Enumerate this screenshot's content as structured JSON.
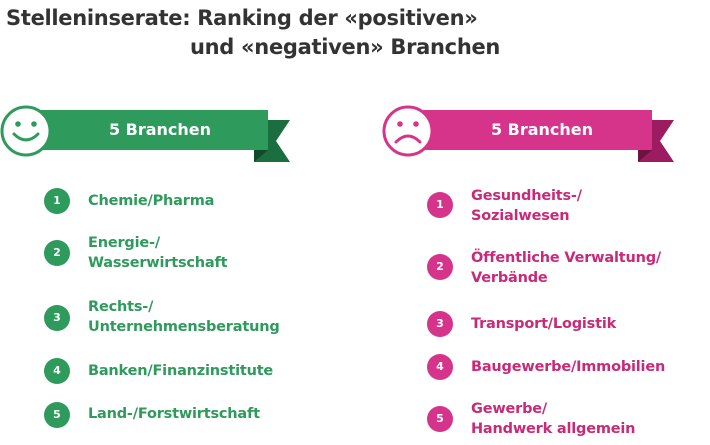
{
  "title": {
    "line1": "Stelleninserate: Ranking der «positiven»",
    "line2": "und «negativen» Branchen"
  },
  "colors": {
    "positive": "#2e9a5c",
    "positive_dark": "#1b6e3f",
    "negative": "#d6348a",
    "negative_dark": "#9b1c60"
  },
  "positive": {
    "icon": "smiley-happy-icon",
    "label": "5 Branchen",
    "items": [
      {
        "num": "1",
        "lines": [
          "Chemie/Pharma"
        ]
      },
      {
        "num": "2",
        "lines": [
          "Energie-/",
          "Wasserwirtschaft"
        ]
      },
      {
        "num": "3",
        "lines": [
          "Rechts-/",
          "Unternehmensberatung"
        ]
      },
      {
        "num": "4",
        "lines": [
          "Banken/Finanzinstitute"
        ]
      },
      {
        "num": "5",
        "lines": [
          "Land-/Forstwirtschaft"
        ]
      }
    ]
  },
  "negative": {
    "icon": "smiley-sad-icon",
    "label": "5 Branchen",
    "items": [
      {
        "num": "1",
        "lines": [
          "Gesundheits-/",
          "Sozialwesen"
        ]
      },
      {
        "num": "2",
        "lines": [
          "Öffentliche Verwaltung/",
          "Verbände"
        ]
      },
      {
        "num": "3",
        "lines": [
          "Transport/Logistik"
        ]
      },
      {
        "num": "4",
        "lines": [
          "Baugewerbe/Immobilien"
        ]
      },
      {
        "num": "5",
        "lines": [
          "Gewerbe/",
          "Handwerk allgemein"
        ]
      }
    ]
  }
}
